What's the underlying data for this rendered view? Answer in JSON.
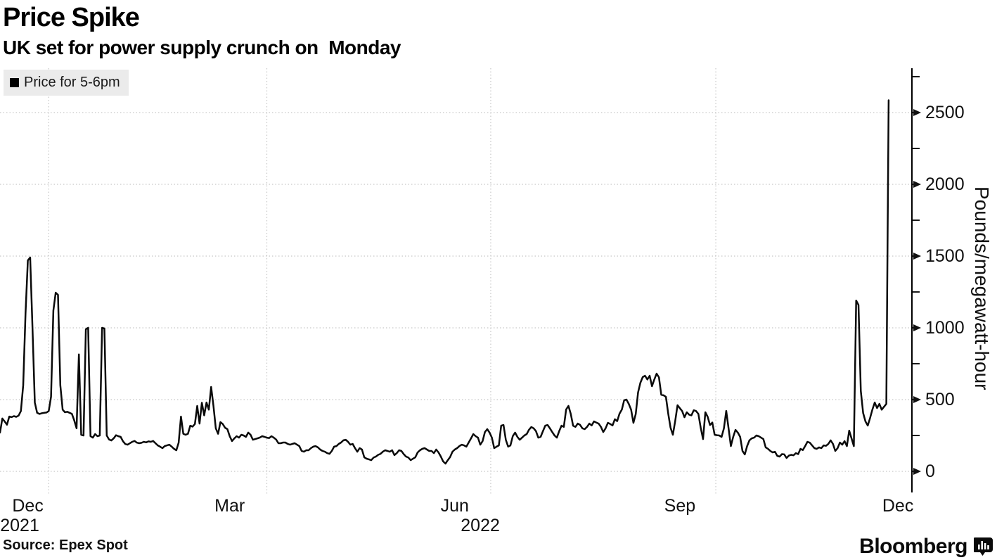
{
  "header": {
    "title": "Price Spike",
    "subtitle": "UK set for power supply crunch on  Monday"
  },
  "legend": {
    "label": "Price for 5-6pm",
    "swatch_color": "#000000"
  },
  "source": {
    "text": "Source: Epex Spot"
  },
  "brand": {
    "name": "Bloomberg",
    "icon": "bar-chart-icon"
  },
  "colors": {
    "line": "#0a0a0a",
    "grid": "#c7c7c7",
    "axis": "#000000",
    "legend_bg": "#ebebeb",
    "text": "#111111"
  },
  "chart_data": {
    "type": "line",
    "title": "Price Spike",
    "series_name": "Price for 5-6pm",
    "xlabel": "",
    "ylabel": "Pounds/megawatt-hour",
    "ylim": [
      0,
      2810
    ],
    "grid": "dotted",
    "legend_position": "top-left",
    "y_axis_side": "right",
    "y_major_ticks": [
      0,
      500,
      1000,
      1500,
      2000,
      2500
    ],
    "y_minor_step": 250,
    "x_domain_days": [
      0,
      393
    ],
    "x_gridline_days": [
      21,
      115,
      211.5,
      308.5
    ],
    "x_month_labels": [
      {
        "label": "Dec",
        "day": 12
      },
      {
        "label": "Mar",
        "day": 99
      },
      {
        "label": "Jun",
        "day": 196
      },
      {
        "label": "Sep",
        "day": 293
      },
      {
        "label": "Dec",
        "day": 387
      }
    ],
    "x_year_labels": [
      {
        "label": "2021",
        "day": 8.5
      },
      {
        "label": "2022",
        "day": 207
      }
    ],
    "points": [
      [
        0,
        270
      ],
      [
        1,
        368
      ],
      [
        2,
        348
      ],
      [
        3,
        325
      ],
      [
        4,
        382
      ],
      [
        5,
        378
      ],
      [
        6,
        385
      ],
      [
        7,
        380
      ],
      [
        8,
        388
      ],
      [
        9,
        420
      ],
      [
        10,
        600
      ],
      [
        11,
        1100
      ],
      [
        12,
        1470
      ],
      [
        13,
        1490
      ],
      [
        14,
        1000
      ],
      [
        15,
        480
      ],
      [
        16,
        408
      ],
      [
        17,
        400
      ],
      [
        18,
        405
      ],
      [
        19,
        408
      ],
      [
        20,
        410
      ],
      [
        21,
        420
      ],
      [
        22,
        520
      ],
      [
        23,
        1120
      ],
      [
        24,
        1245
      ],
      [
        25,
        1230
      ],
      [
        26,
        600
      ],
      [
        27,
        430
      ],
      [
        28,
        412
      ],
      [
        29,
        415
      ],
      [
        30,
        408
      ],
      [
        31,
        400
      ],
      [
        32,
        355
      ],
      [
        33,
        300
      ],
      [
        34,
        815
      ],
      [
        35,
        255
      ],
      [
        36,
        250
      ],
      [
        37,
        990
      ],
      [
        38,
        1000
      ],
      [
        39,
        245
      ],
      [
        40,
        235
      ],
      [
        41,
        260
      ],
      [
        42,
        245
      ],
      [
        43,
        250
      ],
      [
        44,
        1000
      ],
      [
        45,
        995
      ],
      [
        46,
        250
      ],
      [
        47,
        222
      ],
      [
        48,
        215
      ],
      [
        49,
        230
      ],
      [
        50,
        252
      ],
      [
        51,
        245
      ],
      [
        52,
        240
      ],
      [
        53,
        210
      ],
      [
        54,
        190
      ],
      [
        55,
        186
      ],
      [
        56,
        196
      ],
      [
        57,
        206
      ],
      [
        58,
        212
      ],
      [
        59,
        200
      ],
      [
        60,
        196
      ],
      [
        61,
        199
      ],
      [
        62,
        206
      ],
      [
        63,
        202
      ],
      [
        64,
        209
      ],
      [
        65,
        206
      ],
      [
        66,
        212
      ],
      [
        67,
        196
      ],
      [
        68,
        181
      ],
      [
        69,
        172
      ],
      [
        70,
        162
      ],
      [
        71,
        176
      ],
      [
        72,
        181
      ],
      [
        73,
        186
      ],
      [
        74,
        172
      ],
      [
        75,
        157
      ],
      [
        76,
        147
      ],
      [
        77,
        200
      ],
      [
        78,
        382
      ],
      [
        79,
        262
      ],
      [
        80,
        255
      ],
      [
        81,
        262
      ],
      [
        82,
        318
      ],
      [
        83,
        312
      ],
      [
        84,
        330
      ],
      [
        85,
        456
      ],
      [
        86,
        333
      ],
      [
        87,
        478
      ],
      [
        88,
        390
      ],
      [
        89,
        480
      ],
      [
        90,
        430
      ],
      [
        91,
        588
      ],
      [
        92,
        456
      ],
      [
        93,
        300
      ],
      [
        94,
        262
      ],
      [
        95,
        343
      ],
      [
        96,
        330
      ],
      [
        97,
        304
      ],
      [
        98,
        294
      ],
      [
        99,
        245
      ],
      [
        100,
        211
      ],
      [
        101,
        230
      ],
      [
        102,
        245
      ],
      [
        103,
        235
      ],
      [
        104,
        255
      ],
      [
        105,
        250
      ],
      [
        106,
        240
      ],
      [
        107,
        270
      ],
      [
        108,
        255
      ],
      [
        109,
        220
      ],
      [
        110,
        225
      ],
      [
        111,
        230
      ],
      [
        112,
        236
      ],
      [
        113,
        245
      ],
      [
        114,
        240
      ],
      [
        115,
        235
      ],
      [
        116,
        232
      ],
      [
        117,
        245
      ],
      [
        118,
        235
      ],
      [
        119,
        222
      ],
      [
        120,
        196
      ],
      [
        121,
        196
      ],
      [
        122,
        201
      ],
      [
        123,
        201
      ],
      [
        124,
        191
      ],
      [
        125,
        186
      ],
      [
        126,
        191
      ],
      [
        127,
        196
      ],
      [
        128,
        186
      ],
      [
        129,
        176
      ],
      [
        130,
        142
      ],
      [
        131,
        137
      ],
      [
        132,
        147
      ],
      [
        133,
        147
      ],
      [
        134,
        162
      ],
      [
        135,
        172
      ],
      [
        136,
        176
      ],
      [
        137,
        167
      ],
      [
        138,
        152
      ],
      [
        139,
        142
      ],
      [
        140,
        137
      ],
      [
        141,
        127
      ],
      [
        142,
        122
      ],
      [
        143,
        142
      ],
      [
        144,
        172
      ],
      [
        145,
        176
      ],
      [
        146,
        191
      ],
      [
        147,
        201
      ],
      [
        148,
        216
      ],
      [
        149,
        220
      ],
      [
        150,
        206
      ],
      [
        151,
        186
      ],
      [
        152,
        191
      ],
      [
        153,
        162
      ],
      [
        154,
        137
      ],
      [
        155,
        162
      ],
      [
        156,
        152
      ],
      [
        157,
        98
      ],
      [
        158,
        88
      ],
      [
        159,
        84
      ],
      [
        160,
        78
      ],
      [
        161,
        96
      ],
      [
        162,
        103
      ],
      [
        163,
        115
      ],
      [
        164,
        122
      ],
      [
        165,
        137
      ],
      [
        166,
        147
      ],
      [
        167,
        142
      ],
      [
        168,
        137
      ],
      [
        169,
        147
      ],
      [
        170,
        113
      ],
      [
        171,
        127
      ],
      [
        172,
        147
      ],
      [
        173,
        142
      ],
      [
        174,
        120
      ],
      [
        175,
        103
      ],
      [
        176,
        96
      ],
      [
        177,
        78
      ],
      [
        178,
        88
      ],
      [
        179,
        98
      ],
      [
        180,
        132
      ],
      [
        181,
        147
      ],
      [
        182,
        157
      ],
      [
        183,
        162
      ],
      [
        184,
        152
      ],
      [
        185,
        142
      ],
      [
        186,
        142
      ],
      [
        187,
        127
      ],
      [
        188,
        152
      ],
      [
        189,
        132
      ],
      [
        190,
        103
      ],
      [
        191,
        69
      ],
      [
        192,
        54
      ],
      [
        193,
        78
      ],
      [
        194,
        100
      ],
      [
        195,
        137
      ],
      [
        196,
        152
      ],
      [
        197,
        162
      ],
      [
        198,
        176
      ],
      [
        199,
        186
      ],
      [
        200,
        181
      ],
      [
        201,
        172
      ],
      [
        202,
        201
      ],
      [
        203,
        230
      ],
      [
        204,
        260
      ],
      [
        205,
        245
      ],
      [
        206,
        235
      ],
      [
        207,
        186
      ],
      [
        208,
        211
      ],
      [
        209,
        274
      ],
      [
        210,
        294
      ],
      [
        211,
        270
      ],
      [
        212,
        235
      ],
      [
        213,
        162
      ],
      [
        214,
        172
      ],
      [
        215,
        181
      ],
      [
        216,
        318
      ],
      [
        217,
        323
      ],
      [
        218,
        220
      ],
      [
        219,
        172
      ],
      [
        220,
        181
      ],
      [
        221,
        245
      ],
      [
        222,
        270
      ],
      [
        223,
        240
      ],
      [
        224,
        220
      ],
      [
        225,
        235
      ],
      [
        226,
        250
      ],
      [
        227,
        260
      ],
      [
        228,
        290
      ],
      [
        229,
        309
      ],
      [
        230,
        300
      ],
      [
        231,
        280
      ],
      [
        232,
        235
      ],
      [
        233,
        240
      ],
      [
        234,
        280
      ],
      [
        235,
        318
      ],
      [
        236,
        323
      ],
      [
        237,
        300
      ],
      [
        238,
        274
      ],
      [
        239,
        250
      ],
      [
        240,
        235
      ],
      [
        241,
        280
      ],
      [
        242,
        318
      ],
      [
        243,
        310
      ],
      [
        244,
        431
      ],
      [
        245,
        456
      ],
      [
        246,
        400
      ],
      [
        247,
        318
      ],
      [
        248,
        310
      ],
      [
        249,
        333
      ],
      [
        250,
        324
      ],
      [
        251,
        300
      ],
      [
        252,
        294
      ],
      [
        253,
        310
      ],
      [
        254,
        333
      ],
      [
        255,
        320
      ],
      [
        256,
        348
      ],
      [
        257,
        340
      ],
      [
        258,
        333
      ],
      [
        259,
        310
      ],
      [
        260,
        274
      ],
      [
        261,
        300
      ],
      [
        262,
        338
      ],
      [
        263,
        330
      ],
      [
        264,
        320
      ],
      [
        265,
        363
      ],
      [
        266,
        350
      ],
      [
        267,
        402
      ],
      [
        268,
        430
      ],
      [
        269,
        495
      ],
      [
        270,
        500
      ],
      [
        271,
        470
      ],
      [
        272,
        430
      ],
      [
        273,
        338
      ],
      [
        274,
        400
      ],
      [
        275,
        550
      ],
      [
        276,
        617
      ],
      [
        277,
        657
      ],
      [
        278,
        666
      ],
      [
        279,
        640
      ],
      [
        280,
        666
      ],
      [
        281,
        593
      ],
      [
        282,
        640
      ],
      [
        283,
        681
      ],
      [
        284,
        655
      ],
      [
        285,
        534
      ],
      [
        286,
        530
      ],
      [
        287,
        519
      ],
      [
        288,
        402
      ],
      [
        289,
        304
      ],
      [
        290,
        255
      ],
      [
        291,
        350
      ],
      [
        292,
        461
      ],
      [
        293,
        440
      ],
      [
        294,
        420
      ],
      [
        295,
        377
      ],
      [
        296,
        412
      ],
      [
        297,
        395
      ],
      [
        298,
        390
      ],
      [
        299,
        426
      ],
      [
        300,
        420
      ],
      [
        301,
        400
      ],
      [
        302,
        304
      ],
      [
        303,
        225
      ],
      [
        304,
        412
      ],
      [
        305,
        380
      ],
      [
        306,
        323
      ],
      [
        307,
        340
      ],
      [
        308,
        255
      ],
      [
        309,
        252
      ],
      [
        310,
        250
      ],
      [
        311,
        240
      ],
      [
        312,
        300
      ],
      [
        313,
        421
      ],
      [
        314,
        300
      ],
      [
        315,
        176
      ],
      [
        316,
        240
      ],
      [
        317,
        289
      ],
      [
        318,
        270
      ],
      [
        319,
        240
      ],
      [
        320,
        142
      ],
      [
        321,
        118
      ],
      [
        322,
        176
      ],
      [
        323,
        216
      ],
      [
        324,
        230
      ],
      [
        325,
        235
      ],
      [
        326,
        250
      ],
      [
        327,
        245
      ],
      [
        328,
        235
      ],
      [
        329,
        225
      ],
      [
        330,
        167
      ],
      [
        331,
        157
      ],
      [
        332,
        142
      ],
      [
        333,
        132
      ],
      [
        334,
        137
      ],
      [
        335,
        108
      ],
      [
        336,
        103
      ],
      [
        337,
        120
      ],
      [
        338,
        118
      ],
      [
        339,
        93
      ],
      [
        340,
        110
      ],
      [
        341,
        115
      ],
      [
        342,
        112
      ],
      [
        343,
        127
      ],
      [
        344,
        120
      ],
      [
        345,
        157
      ],
      [
        346,
        148
      ],
      [
        347,
        176
      ],
      [
        348,
        206
      ],
      [
        349,
        200
      ],
      [
        350,
        181
      ],
      [
        351,
        162
      ],
      [
        352,
        157
      ],
      [
        353,
        167
      ],
      [
        354,
        162
      ],
      [
        355,
        181
      ],
      [
        356,
        178
      ],
      [
        357,
        191
      ],
      [
        358,
        216
      ],
      [
        359,
        191
      ],
      [
        360,
        142
      ],
      [
        361,
        162
      ],
      [
        362,
        201
      ],
      [
        363,
        186
      ],
      [
        364,
        211
      ],
      [
        365,
        176
      ],
      [
        366,
        284
      ],
      [
        367,
        230
      ],
      [
        368,
        176
      ],
      [
        369,
        1190
      ],
      [
        370,
        1160
      ],
      [
        371,
        560
      ],
      [
        372,
        407
      ],
      [
        373,
        348
      ],
      [
        374,
        319
      ],
      [
        375,
        372
      ],
      [
        376,
        431
      ],
      [
        377,
        480
      ],
      [
        378,
        441
      ],
      [
        379,
        470
      ],
      [
        380,
        430
      ],
      [
        381,
        450
      ],
      [
        382,
        470
      ],
      [
        383,
        2586
      ]
    ]
  }
}
